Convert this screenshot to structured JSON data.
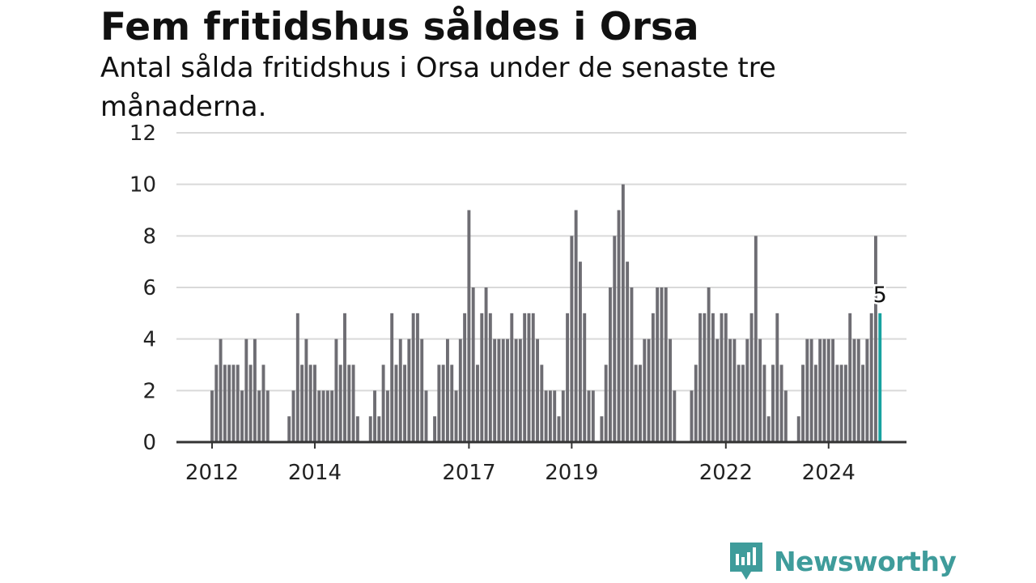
{
  "header": {
    "title": "Fem fritidshus såldes i Orsa",
    "subtitle": "Antal sålda fritidshus i Orsa under de senaste tre månaderna."
  },
  "brand": {
    "name": "Newsworthy",
    "color": "#3f9c9b"
  },
  "colors": {
    "bar": "#6e6d73",
    "highlight": "#17a2a0",
    "grid": "#d9d9d9",
    "axis": "#333333"
  },
  "chart_data": {
    "type": "bar",
    "ylim": [
      0,
      12
    ],
    "y_ticks": [
      0,
      2,
      4,
      6,
      8,
      10,
      12
    ],
    "x_ticks": [
      {
        "label": "2012",
        "value": "2012-01"
      },
      {
        "label": "2014",
        "value": "2014-01"
      },
      {
        "label": "2017",
        "value": "2017-01"
      },
      {
        "label": "2019",
        "value": "2019-01"
      },
      {
        "label": "2022",
        "value": "2022-01"
      },
      {
        "label": "2024",
        "value": "2024-01"
      }
    ],
    "grid": true,
    "start_month": "2012-01",
    "series": [
      {
        "values": [
          2,
          3,
          4,
          3,
          3,
          3,
          3,
          2,
          4,
          3,
          4,
          2,
          3,
          2,
          null,
          null,
          null,
          null,
          1,
          2,
          5,
          3,
          4,
          3,
          3,
          2,
          2,
          2,
          2,
          4,
          3,
          5,
          3,
          3,
          1,
          null,
          null,
          1,
          2,
          1,
          3,
          2,
          5,
          3,
          4,
          3,
          4,
          5,
          5,
          4,
          2,
          null,
          1,
          3,
          3,
          4,
          3,
          2,
          4,
          5,
          9,
          6,
          3,
          5,
          6,
          5,
          4,
          4,
          4,
          4,
          5,
          4,
          4,
          5,
          5,
          5,
          4,
          3,
          2,
          2,
          2,
          1,
          2,
          5,
          8,
          9,
          7,
          5,
          2,
          2,
          null,
          1,
          3,
          6,
          8,
          9,
          10,
          7,
          6,
          3,
          3,
          4,
          4,
          5,
          6,
          6,
          6,
          4,
          2,
          null,
          null,
          null,
          2,
          3,
          5,
          5,
          6,
          5,
          4,
          5,
          5,
          4,
          4,
          3,
          3,
          4,
          5,
          8,
          4,
          3,
          1,
          3,
          5,
          3,
          2,
          null,
          null,
          1,
          3,
          4,
          4,
          3,
          4,
          4,
          4,
          4,
          3,
          3,
          3,
          5,
          4,
          4,
          3,
          4,
          5,
          8,
          5
        ]
      }
    ],
    "highlight_label": "5"
  }
}
